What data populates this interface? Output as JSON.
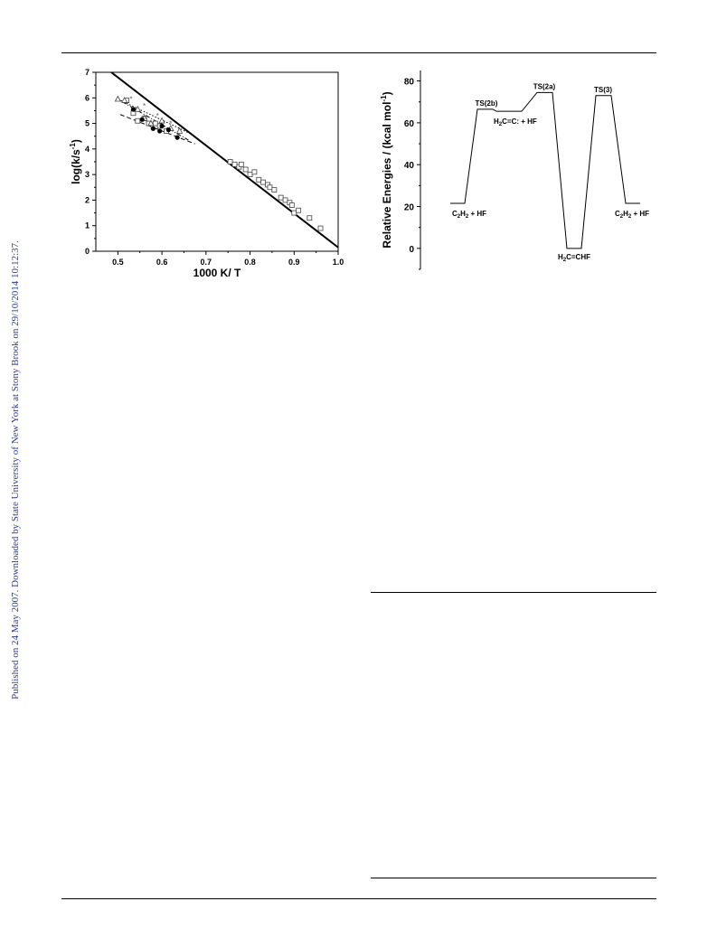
{
  "margin_note": "Published on 24 May 2007. Downloaded by State University of New York at Stony Brook on 29/10/2014 10:12:37.",
  "chart_data": [
    {
      "type": "scatter",
      "xlabel": "1000 K/ T",
      "ylabel": "log(k/s",
      "ylabel_sup": "-1",
      "ylabel_end": ")",
      "xlim": [
        0.45,
        1.0
      ],
      "ylim": [
        0,
        7
      ],
      "xticks": [
        0.5,
        0.6,
        0.7,
        0.8,
        0.9,
        1.0
      ],
      "xtick_labels": [
        "0.5",
        "0.6",
        "0.7",
        "0.8",
        "0.9",
        "1.0"
      ],
      "yticks": [
        0,
        1,
        2,
        3,
        4,
        5,
        6,
        7
      ],
      "ytick_labels": [
        "0",
        "1",
        "2",
        "3",
        "4",
        "5",
        "6",
        "7"
      ],
      "fit_line": {
        "x": [
          0.485,
          1.0
        ],
        "y": [
          7.0,
          0.15
        ]
      },
      "dotted_line": {
        "x": [
          0.5,
          0.665
        ],
        "y": [
          5.95,
          4.6
        ]
      },
      "dashdot_line": {
        "x": [
          0.51,
          0.66
        ],
        "y": [
          5.85,
          4.35
        ]
      },
      "dashed_line": {
        "x": [
          0.505,
          0.675
        ],
        "y": [
          5.35,
          4.2
        ]
      },
      "series": [
        {
          "marker": "square-open",
          "x": [
            0.52,
            0.535,
            0.545,
            0.56,
            0.57,
            0.585,
            0.595,
            0.61,
            0.755,
            0.765,
            0.775,
            0.78,
            0.79,
            0.8,
            0.81,
            0.82,
            0.83,
            0.84,
            0.845,
            0.855,
            0.87,
            0.88,
            0.89,
            0.895,
            0.9,
            0.91,
            0.935,
            0.96
          ],
          "y": [
            5.9,
            5.4,
            5.1,
            5.2,
            5.0,
            5.0,
            4.9,
            4.7,
            3.5,
            3.4,
            3.3,
            3.4,
            3.2,
            3.0,
            3.1,
            2.8,
            2.7,
            2.6,
            2.5,
            2.4,
            2.1,
            2.0,
            1.9,
            1.8,
            1.5,
            1.6,
            1.3,
            0.9
          ]
        },
        {
          "marker": "triangle-open",
          "x": [
            0.5,
            0.515,
            0.545,
            0.56,
            0.575,
            0.6,
            0.62,
            0.64
          ],
          "y": [
            5.95,
            5.9,
            5.55,
            5.2,
            5.0,
            5.1,
            4.8,
            4.7
          ]
        },
        {
          "marker": "circle-filled",
          "x": [
            0.535,
            0.555,
            0.58,
            0.595,
            0.6,
            0.615,
            0.635
          ],
          "y": [
            5.55,
            5.15,
            4.8,
            4.7,
            4.9,
            4.75,
            4.45
          ]
        },
        {
          "marker": "star",
          "x": [
            0.53,
            0.56,
            0.59,
            0.62
          ],
          "y": [
            5.95,
            5.7,
            5.3,
            5.0
          ]
        }
      ]
    },
    {
      "type": "line",
      "ylabel": "Relative Energies / (kcal mol",
      "ylabel_sup": "-1",
      "ylabel_end": ")",
      "ylim": [
        -10,
        85
      ],
      "yticks": [
        0,
        20,
        40,
        60,
        80
      ],
      "ytick_labels": [
        "0",
        "20",
        "40",
        "60",
        "80"
      ],
      "levels": [
        {
          "y": 21.5,
          "labels": [
            {
              "t": "C"
            },
            {
              "t": "2",
              "sub": true
            },
            {
              "t": "H"
            },
            {
              "t": "2",
              "sub": true
            },
            {
              "t": " + HF"
            }
          ]
        },
        {
          "y": 66.5,
          "labels": [
            {
              "t": "TS(2b)"
            }
          ]
        },
        {
          "y": 65.5,
          "labels": [
            {
              "t": "H"
            },
            {
              "t": "2",
              "sub": true
            },
            {
              "t": "C=C: + HF"
            }
          ]
        },
        {
          "y": 74.5,
          "labels": [
            {
              "t": "TS(2a)"
            }
          ]
        },
        {
          "y": 0,
          "labels": [
            {
              "t": "H"
            },
            {
              "t": "2",
              "sub": true
            },
            {
              "t": "C=CHF"
            }
          ]
        },
        {
          "y": 73.0,
          "labels": [
            {
              "t": "TS(3)"
            }
          ]
        },
        {
          "y": 21.5,
          "labels": [
            {
              "t": "C"
            },
            {
              "t": "2",
              "sub": true
            },
            {
              "t": "H"
            },
            {
              "t": "2",
              "sub": true
            },
            {
              "t": " + HF"
            }
          ]
        }
      ]
    }
  ]
}
